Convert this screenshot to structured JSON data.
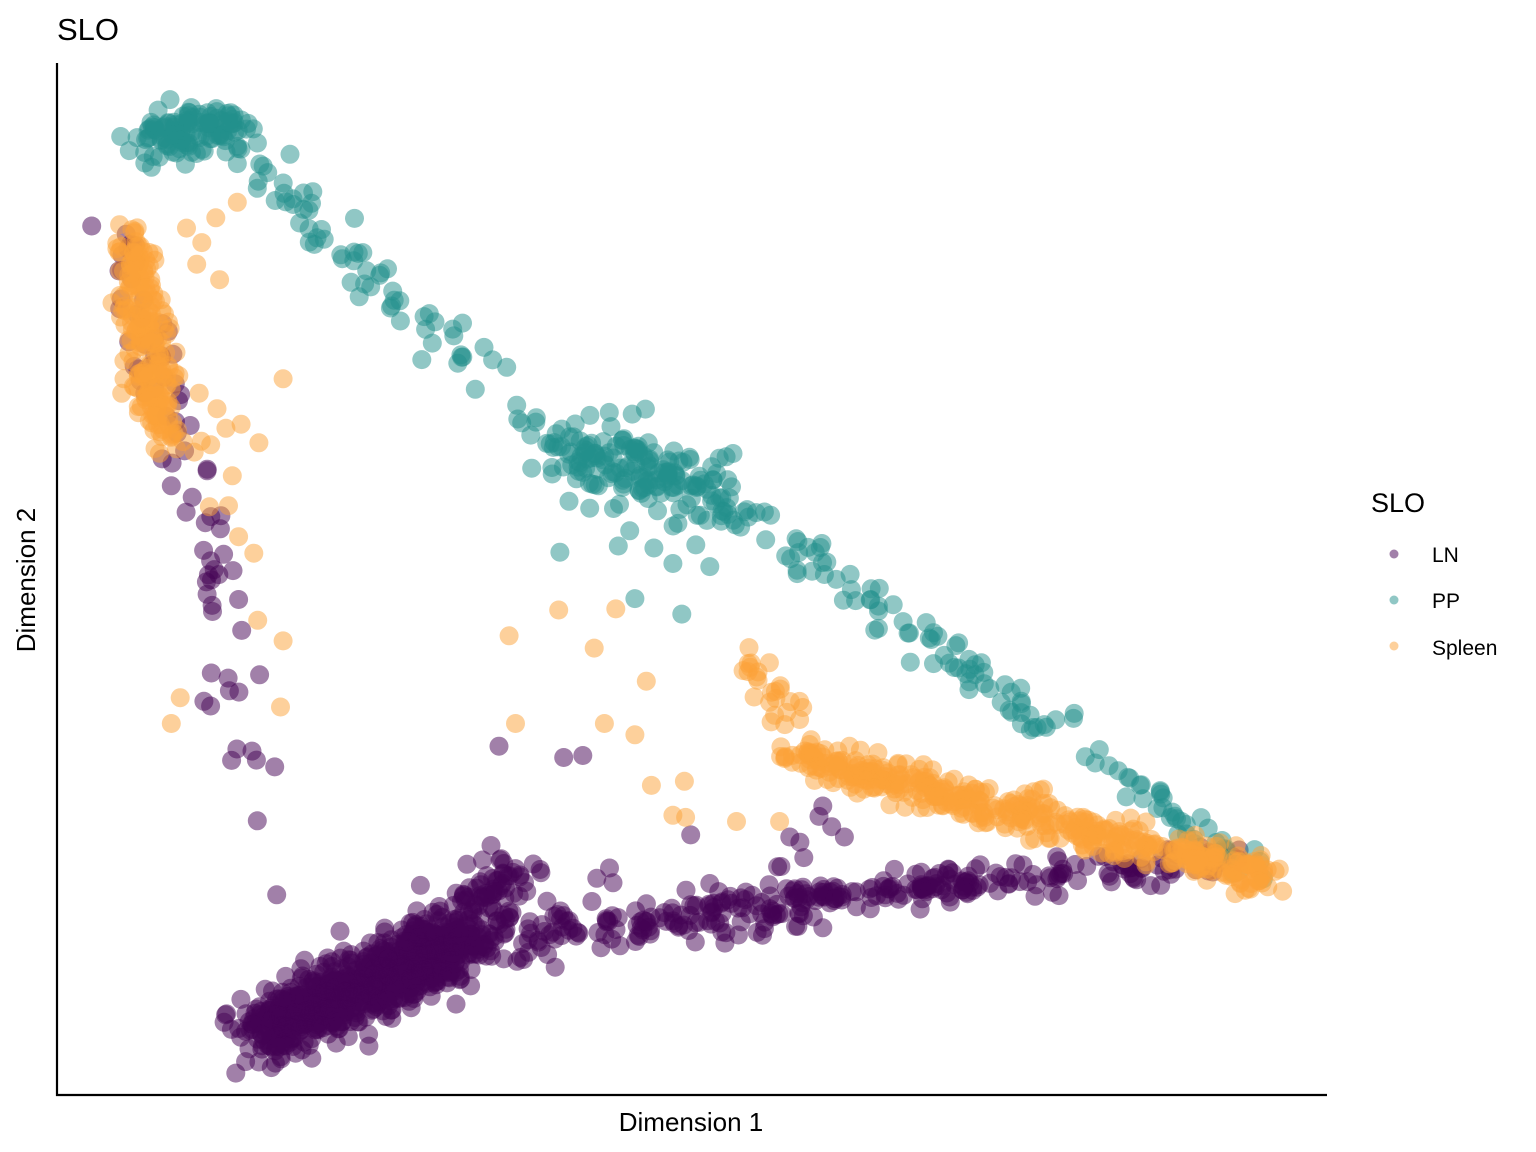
{
  "chart_data": {
    "type": "scatter",
    "title": "SLO",
    "xlabel": "Dimension 1",
    "ylabel": "Dimension 2",
    "xlim": [
      0,
      100
    ],
    "ylim": [
      0,
      100
    ],
    "grid": false,
    "axis_ticks": false,
    "legend": {
      "title": "SLO",
      "placement": "right",
      "entries": [
        "LN",
        "PP",
        "Spleen"
      ]
    },
    "point_alpha": 0.5,
    "series": [
      {
        "name": "LN",
        "color": "#440154",
        "clusters": [
          {
            "from": [
              16,
              6
            ],
            "to": [
              30,
              14
            ],
            "n": 700,
            "spread": 1.6
          },
          {
            "from": [
              28,
              12
            ],
            "to": [
              36,
              22
            ],
            "n": 160,
            "spread": 1.6
          },
          {
            "from": [
              30,
              14
            ],
            "to": [
              60,
              19
            ],
            "n": 200,
            "spread": 1.2
          },
          {
            "from": [
              60,
              19
            ],
            "to": [
              93,
              23
            ],
            "n": 170,
            "spread": 0.8
          },
          {
            "from": [
              5,
              83
            ],
            "to": [
              13,
              50
            ],
            "n": 60,
            "spread": 0.9
          },
          {
            "from": [
              12,
              52
            ],
            "to": [
              16,
              30
            ],
            "n": 20,
            "spread": 1.5
          }
        ],
        "points": [
          [
            17.3,
            19.4
          ],
          [
            34.8,
            33.8
          ],
          [
            39.9,
            32.7
          ],
          [
            41.4,
            32.9
          ],
          [
            49.9,
            25.2
          ],
          [
            58.8,
            23.0
          ],
          [
            60.0,
            27.0
          ],
          [
            61.0,
            26.0
          ],
          [
            60.3,
            28.0
          ],
          [
            62.0,
            25.0
          ],
          [
            58.5,
            24.5
          ],
          [
            42.5,
            21.0
          ],
          [
            43.5,
            22.0
          ],
          [
            57.7,
            25.0
          ]
        ]
      },
      {
        "name": "PP",
        "color": "#21908C",
        "clusters": [
          {
            "from": [
              7.5,
              93
            ],
            "to": [
              14,
              94
            ],
            "n": 120,
            "spread": 1.2
          },
          {
            "from": [
              14,
              92
            ],
            "to": [
              40,
              63
            ],
            "n": 70,
            "spread": 1.3
          },
          {
            "from": [
              40,
              63
            ],
            "to": [
              52,
              58
            ],
            "n": 170,
            "spread": 1.8
          },
          {
            "from": [
              52,
              58
            ],
            "to": [
              94,
              22
            ],
            "n": 130,
            "spread": 0.9
          }
        ],
        "points": [
          [
            39.6,
            52.6
          ],
          [
            45.5,
            48.1
          ],
          [
            49.2,
            46.6
          ],
          [
            51.4,
            51.2
          ],
          [
            48.5,
            51.5
          ],
          [
            44.2,
            53.2
          ],
          [
            47.0,
            53.0
          ],
          [
            50.3,
            53.3
          ]
        ]
      },
      {
        "name": "Spleen",
        "color": "#FBA238",
        "clusters": [
          {
            "from": [
              5.8,
              83
            ],
            "to": [
              8.5,
              63
            ],
            "n": 220,
            "spread": 0.9
          },
          {
            "from": [
              58,
              33
            ],
            "to": [
              96,
              21
            ],
            "n": 450,
            "spread": 0.9
          },
          {
            "from": [
              54,
              43
            ],
            "to": [
              58,
              36
            ],
            "n": 25,
            "spread": 0.8
          }
        ],
        "points": [
          [
            13.3,
            64.6
          ],
          [
            14.5,
            65.0
          ],
          [
            15.9,
            63.2
          ],
          [
            10.8,
            62.3
          ],
          [
            12.1,
            63.0
          ],
          [
            17.8,
            69.4
          ],
          [
            14.2,
            86.5
          ],
          [
            12.5,
            85.0
          ],
          [
            11.4,
            82.6
          ],
          [
            10.2,
            84.0
          ],
          [
            11.0,
            80.5
          ],
          [
            12.8,
            79.0
          ],
          [
            11.2,
            68.0
          ],
          [
            12.6,
            66.5
          ],
          [
            13.8,
            60.0
          ],
          [
            14.3,
            54.1
          ],
          [
            13.5,
            57.1
          ],
          [
            15.8,
            46.0
          ],
          [
            17.8,
            44.0
          ],
          [
            9.0,
            36.0
          ],
          [
            17.6,
            37.6
          ],
          [
            9.7,
            38.5
          ],
          [
            36.1,
            36.0
          ],
          [
            35.6,
            44.5
          ],
          [
            42.3,
            43.3
          ],
          [
            44.0,
            47.1
          ],
          [
            39.5,
            47.0
          ],
          [
            46.4,
            40.1
          ],
          [
            43.1,
            36.0
          ],
          [
            45.5,
            34.9
          ],
          [
            49.5,
            26.9
          ],
          [
            46.8,
            30.0
          ],
          [
            49.4,
            30.4
          ],
          [
            56.9,
            26.5
          ],
          [
            53.5,
            26.5
          ],
          [
            48.5,
            27.1
          ],
          [
            12.0,
            57.0
          ],
          [
            15.5,
            52.5
          ]
        ]
      }
    ]
  }
}
